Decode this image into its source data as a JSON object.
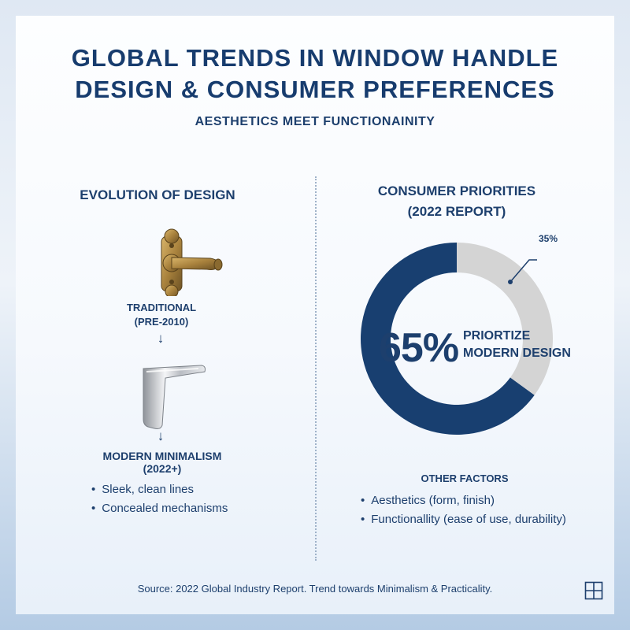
{
  "header": {
    "title_line1": "GLOBAL TRENDS IN WINDOW HANDLE",
    "title_line2": "DESIGN & CONSUMER PREFERENCES",
    "subtitle": "AESTHETICS MEET FUNCTIONAINITY"
  },
  "evolution": {
    "title": "EVOLUTION OF DESIGN",
    "traditional_line1": "TRADITIONAL",
    "traditional_line2": "(PRE-2010)",
    "arrow": "↓",
    "modern_label": "MODERN MINIMALISM (2022+)",
    "bullets": [
      "Sleek, clean lines",
      "Concealed mechanisms"
    ]
  },
  "priorities": {
    "title_line1": "CONSUMER PRIORITIES",
    "title_line2": "(2022 REPORT)",
    "center_value": "65%",
    "center_text_line1": "PRIORTIZE",
    "center_text_line2": "MODERN DESIGN",
    "other_label": "35%",
    "other_factors_title": "OTHER FACTORS",
    "other_factors": [
      "Aesthetics (form, finish)",
      "Functionallity (ease of use, durability)"
    ]
  },
  "chart_data": {
    "type": "pie",
    "donut": true,
    "slices": [
      {
        "label": "PRIORTIZE MODERN DESIGN",
        "value": 65,
        "color": "#183f70"
      },
      {
        "label": "OTHER FACTORS",
        "value": 35,
        "color": "#d4d4d4"
      }
    ]
  },
  "footer": {
    "source": "Source: 2022 Global Industry Report. Trend towards Minimalism & Practicality."
  },
  "colors": {
    "navy": "#183f70",
    "light_gray": "#d4d4d4",
    "text": "#1d3f6d"
  },
  "icons": {
    "traditional": "traditional-handle-icon",
    "modern": "modern-handle-icon",
    "corner": "window-icon"
  }
}
